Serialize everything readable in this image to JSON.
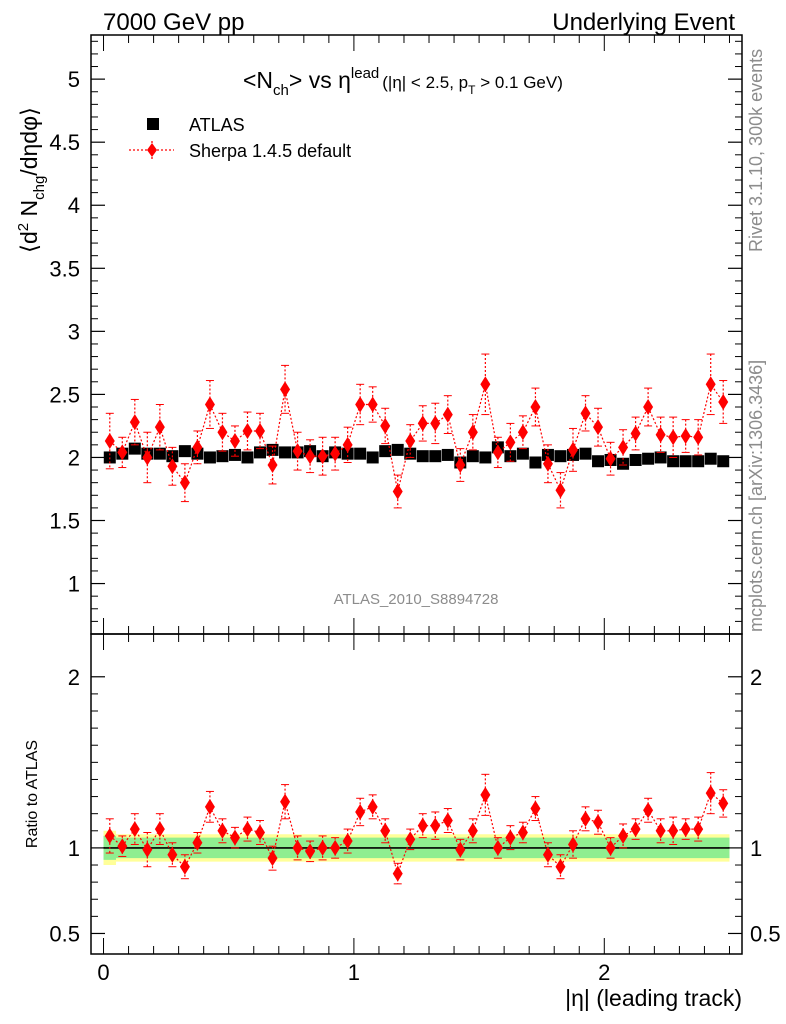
{
  "header": {
    "left": "7000 GeV pp",
    "right": "Underlying Event"
  },
  "side_labels": {
    "rivet": "Rivet 3.1.10,  300k events",
    "mcplots": "mcplots.cern.ch [arXiv:1306.3436]"
  },
  "watermark": "ATLAS_2010_S8894728",
  "colors": {
    "data": "#000000",
    "mc": "#ff0000",
    "band_inner": "#90ee90",
    "band_outer": "#ffff99"
  },
  "chart_data": [
    {
      "type": "scatter",
      "title": "<N_ch> vs η^lead (|η| < 2.5, p_T > 0.1 GeV)",
      "title_parts": {
        "main": "<N",
        "main_sub": "ch",
        "main_rest": "> vs η",
        "main_sup": "lead",
        "cond_a": "(|η| < 2.5, p",
        "cond_sub": "T",
        "cond_b": " > 0.1 GeV)"
      },
      "ylabel": "⟨d² N_chg/dηdφ⟩",
      "ylabel_parts": {
        "a": "⟨d",
        "sup": "2",
        "b": " N",
        "sub": "chg",
        "c": "/dηdφ⟩"
      },
      "xlim": [
        -0.05,
        2.55
      ],
      "ylim": [
        0.6,
        5.35
      ],
      "yticks": [
        1,
        1.5,
        2,
        2.5,
        3,
        3.5,
        4,
        4.5,
        5
      ],
      "ytick_labels": [
        "1",
        "1.5",
        "2",
        "2.5",
        "3",
        "3.5",
        "4",
        "4.5",
        "5"
      ],
      "legend_placement": "top-left",
      "x": [
        0.025,
        0.075,
        0.125,
        0.175,
        0.225,
        0.275,
        0.325,
        0.375,
        0.425,
        0.475,
        0.525,
        0.575,
        0.625,
        0.675,
        0.725,
        0.775,
        0.825,
        0.875,
        0.925,
        0.975,
        1.025,
        1.075,
        1.125,
        1.175,
        1.225,
        1.275,
        1.325,
        1.375,
        1.425,
        1.475,
        1.525,
        1.575,
        1.625,
        1.675,
        1.725,
        1.775,
        1.825,
        1.875,
        1.925,
        1.975,
        2.025,
        2.075,
        2.125,
        2.175,
        2.225,
        2.275,
        2.325,
        2.375,
        2.425,
        2.475
      ],
      "series": [
        {
          "name": "ATLAS",
          "marker": "square",
          "y": [
            2.0,
            2.03,
            2.07,
            2.03,
            2.03,
            2.01,
            2.05,
            2.03,
            2.0,
            2.01,
            2.02,
            2.0,
            2.04,
            2.06,
            2.04,
            2.04,
            2.05,
            2.01,
            2.04,
            2.03,
            2.03,
            2.0,
            2.05,
            2.06,
            2.03,
            2.01,
            2.01,
            2.02,
            1.96,
            2.01,
            2.0,
            2.08,
            2.01,
            2.03,
            1.96,
            2.02,
            2.01,
            2.02,
            2.03,
            1.97,
            1.98,
            1.95,
            1.98,
            1.99,
            2.0,
            1.97,
            1.97,
            1.97,
            1.99,
            1.97
          ]
        },
        {
          "name": "Sherpa 1.4.5 default",
          "marker": "diamond",
          "y": [
            2.13,
            2.04,
            2.28,
            2.0,
            2.24,
            1.93,
            1.8,
            2.08,
            2.42,
            2.2,
            2.13,
            2.21,
            2.21,
            1.94,
            2.54,
            2.05,
            2.01,
            2.01,
            2.03,
            2.1,
            2.42,
            2.42,
            2.25,
            1.73,
            2.13,
            2.27,
            2.27,
            2.34,
            1.94,
            2.2,
            2.58,
            2.04,
            2.12,
            2.2,
            2.4,
            1.95,
            1.74,
            2.06,
            2.35,
            2.24,
            1.99,
            2.08,
            2.19,
            2.4,
            2.18,
            2.16,
            2.17,
            2.16,
            2.58,
            2.44
          ],
          "yerr": [
            0.22,
            0.12,
            0.18,
            0.2,
            0.18,
            0.15,
            0.15,
            0.13,
            0.19,
            0.15,
            0.12,
            0.15,
            0.14,
            0.15,
            0.19,
            0.15,
            0.13,
            0.15,
            0.13,
            0.14,
            0.16,
            0.14,
            0.14,
            0.13,
            0.13,
            0.14,
            0.16,
            0.15,
            0.13,
            0.14,
            0.24,
            0.12,
            0.15,
            0.13,
            0.15,
            0.15,
            0.14,
            0.17,
            0.14,
            0.15,
            0.13,
            0.14,
            0.13,
            0.15,
            0.14,
            0.16,
            0.13,
            0.14,
            0.24,
            0.17
          ]
        }
      ]
    },
    {
      "type": "scatter",
      "ylabel": "Ratio to ATLAS",
      "xlabel": "|η| (leading track)",
      "xlim": [
        -0.05,
        2.55
      ],
      "xticks": [
        0,
        1,
        2
      ],
      "xtick_labels": [
        "0",
        "1",
        "2"
      ],
      "ylim": [
        0.38,
        2.25
      ],
      "yticks": [
        0.5,
        1,
        2
      ],
      "ytick_labels": [
        "0.5",
        "1",
        "2"
      ],
      "reference_line": 1.0,
      "bands": {
        "inner_halfwidth": [
          0.07,
          0.06,
          0.06,
          0.06,
          0.06,
          0.06,
          0.06,
          0.06,
          0.06,
          0.06,
          0.06,
          0.06,
          0.06,
          0.06,
          0.06,
          0.06,
          0.06,
          0.06,
          0.06,
          0.06,
          0.06,
          0.06,
          0.06,
          0.06,
          0.06,
          0.06,
          0.06,
          0.06,
          0.06,
          0.06,
          0.06,
          0.06,
          0.06,
          0.06,
          0.06,
          0.06,
          0.06,
          0.06,
          0.06,
          0.06,
          0.06,
          0.06,
          0.06,
          0.06,
          0.06,
          0.06,
          0.06,
          0.06,
          0.06,
          0.06
        ],
        "outer_halfwidth": [
          0.1,
          0.08,
          0.08,
          0.08,
          0.08,
          0.08,
          0.08,
          0.08,
          0.08,
          0.08,
          0.08,
          0.08,
          0.08,
          0.08,
          0.08,
          0.08,
          0.08,
          0.08,
          0.08,
          0.08,
          0.08,
          0.08,
          0.08,
          0.08,
          0.08,
          0.08,
          0.08,
          0.08,
          0.08,
          0.08,
          0.08,
          0.08,
          0.08,
          0.08,
          0.08,
          0.08,
          0.08,
          0.08,
          0.08,
          0.08,
          0.08,
          0.08,
          0.08,
          0.08,
          0.08,
          0.08,
          0.08,
          0.08,
          0.08,
          0.08
        ]
      },
      "series": [
        {
          "name": "Sherpa 1.4.5 default",
          "marker": "diamond",
          "y": [
            1.07,
            1.01,
            1.11,
            0.99,
            1.11,
            0.96,
            0.89,
            1.03,
            1.24,
            1.1,
            1.06,
            1.11,
            1.09,
            0.94,
            1.27,
            1.0,
            0.98,
            1.0,
            1.0,
            1.04,
            1.21,
            1.24,
            1.1,
            0.85,
            1.05,
            1.13,
            1.13,
            1.16,
            0.99,
            1.1,
            1.31,
            1.0,
            1.06,
            1.09,
            1.23,
            0.96,
            0.89,
            1.02,
            1.17,
            1.15,
            1.0,
            1.07,
            1.11,
            1.22,
            1.1,
            1.1,
            1.11,
            1.11,
            1.32,
            1.26
          ],
          "yerr": [
            0.1,
            0.06,
            0.09,
            0.1,
            0.09,
            0.07,
            0.07,
            0.06,
            0.09,
            0.07,
            0.06,
            0.07,
            0.07,
            0.07,
            0.1,
            0.07,
            0.06,
            0.07,
            0.06,
            0.07,
            0.08,
            0.07,
            0.07,
            0.06,
            0.06,
            0.07,
            0.08,
            0.07,
            0.06,
            0.07,
            0.12,
            0.06,
            0.07,
            0.06,
            0.07,
            0.07,
            0.07,
            0.08,
            0.07,
            0.07,
            0.06,
            0.07,
            0.06,
            0.07,
            0.07,
            0.08,
            0.06,
            0.07,
            0.12,
            0.08
          ]
        }
      ]
    }
  ]
}
